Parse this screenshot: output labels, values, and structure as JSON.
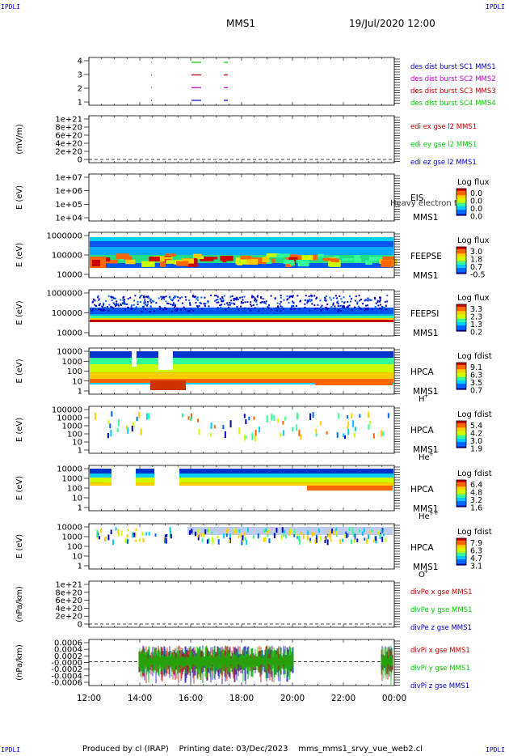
{
  "header": {
    "corner_left_top": "IPDLI",
    "corner_right_top": "IPDLI",
    "corner_left_bottom": "IPDLI",
    "corner_right_bottom": "IPDLI",
    "mission": "MMS1",
    "datetime": "19/Jul/2020 12:00"
  },
  "footer": {
    "produced_by": "Produced by cl (IRAP)",
    "printing_date": "Printing date: 03/Dec/2023",
    "filename": "mms_mms1_srvy_vue_web2.cl"
  },
  "colors": {
    "blue": "#0000cc",
    "magenta": "#cc00cc",
    "red": "#cc0000",
    "green": "#00cc00"
  },
  "chart_data": {
    "type": "heatmap",
    "x_ticks": [
      "12:00",
      "14:00",
      "16:00",
      "18:00",
      "20:00",
      "22:00",
      "00:00"
    ],
    "panels": [
      {
        "id": "burst",
        "ylabel": "",
        "yticks": [
          "4",
          "3",
          "2",
          "1"
        ],
        "legend": [
          {
            "text": "des dist burst SC1 MMS1",
            "color": "#0000cc"
          },
          {
            "text": "des dist burst SC2 MMS2",
            "color": "#cc00cc"
          },
          {
            "text": "des dist burst SC3 MMS3",
            "color": "#cc0000"
          },
          {
            "text": "des dist burst SC4 MMS4",
            "color": "#00cc00"
          }
        ]
      },
      {
        "id": "edi",
        "ylabel": "(mV/m)",
        "yticks": [
          "1e+21",
          "8e+20",
          "6e+20",
          "4e+20",
          "2e+20",
          "0"
        ],
        "legend": [
          {
            "text": "edi ex gse l2 MMS1",
            "color": "#cc0000"
          },
          {
            "text": "edi ey gse l2 MMS1",
            "color": "#00cc00"
          },
          {
            "text": "edi ez gse l2 MMS1",
            "color": "#0000cc"
          }
        ]
      },
      {
        "id": "eis",
        "ylabel": "E (eV)",
        "yticks": [
          "1e+07",
          "1e+06",
          "1e+05",
          "1e+04"
        ],
        "instrument": [
          "EIS",
          "MMS1"
        ],
        "overlay": "Heavy electron to",
        "cb_title": "Log flux",
        "cb_ticks": [
          "0.0",
          "0.0",
          "0.0",
          "0.0"
        ]
      },
      {
        "id": "feepse",
        "ylabel": "E (eV)",
        "yticks": [
          "1000000",
          "100000",
          "10000"
        ],
        "instrument": [
          "FEEPSE",
          "MMS1"
        ],
        "cb_title": "Log flux",
        "cb_ticks": [
          "3.0",
          "1.8",
          "0.7",
          "-0.5"
        ]
      },
      {
        "id": "feepsi",
        "ylabel": "E (eV)",
        "yticks": [
          "1000000",
          "100000",
          "10000"
        ],
        "instrument": [
          "FEEPSI",
          "MMS1"
        ],
        "cb_title": "Log flux",
        "cb_ticks": [
          "3.3",
          "2.3",
          "1.3",
          "0.2"
        ]
      },
      {
        "id": "hpca_h",
        "ylabel": "E (eV)",
        "yticks": [
          "10000",
          "1000",
          "100",
          "10",
          "1"
        ],
        "instrument": [
          "HPCA",
          "MMS1"
        ],
        "species": "H",
        "species_sup": "+",
        "cb_title": "Log fdist",
        "cb_ticks": [
          "9.1",
          "6.3",
          "3.5",
          "0.7"
        ]
      },
      {
        "id": "hpca_he",
        "ylabel": "E (eV)",
        "yticks": [
          "100000",
          "10000",
          "1000",
          "100",
          "10",
          "1"
        ],
        "instrument": [
          "HPCA",
          "MMS1"
        ],
        "species": "He",
        "species_sup": "+",
        "cb_title": "Log fdist",
        "cb_ticks": [
          "5.4",
          "4.2",
          "3.0",
          "1.9"
        ]
      },
      {
        "id": "hpca_hepp",
        "ylabel": "E (eV)",
        "yticks": [
          "10000",
          "1000",
          "100",
          "10",
          "1"
        ],
        "instrument": [
          "HPCA",
          "MMS1"
        ],
        "species": "He",
        "species_sup": "++",
        "cb_title": "Log fdist",
        "cb_ticks": [
          "6.4",
          "4.8",
          "3.2",
          "1.6"
        ]
      },
      {
        "id": "hpca_o",
        "ylabel": "E (eV)",
        "yticks": [
          "10000",
          "1000",
          "100",
          "10",
          "1"
        ],
        "instrument": [
          "HPCA",
          "MMS1"
        ],
        "species": "O",
        "species_sup": "+",
        "cb_title": "Log fdist",
        "cb_ticks": [
          "7.9",
          "6.3",
          "4.7",
          "3.1"
        ]
      },
      {
        "id": "divpe",
        "ylabel": "(nPa/km)",
        "yticks": [
          "1e+21",
          "8e+20",
          "6e+20",
          "4e+20",
          "2e+20",
          "0"
        ],
        "legend": [
          {
            "text": "divPe x gse MMS1",
            "color": "#cc0000"
          },
          {
            "text": "divPe y gse MMS1",
            "color": "#00cc00"
          },
          {
            "text": "divPe z gse MMS1",
            "color": "#0000cc"
          }
        ]
      },
      {
        "id": "divpi",
        "ylabel": "(nPa/km)",
        "yticks": [
          "0.0006",
          "0.0004",
          "0.0002",
          "-0.0000",
          "-0.0002",
          "-0.0004",
          "-0.0006"
        ],
        "legend": [
          {
            "text": "divPi x gse MMS1",
            "color": "#cc0000"
          },
          {
            "text": "divPi y gse MMS1",
            "color": "#00cc00"
          },
          {
            "text": "divPi z gse MMS1",
            "color": "#0000cc"
          }
        ]
      }
    ]
  }
}
